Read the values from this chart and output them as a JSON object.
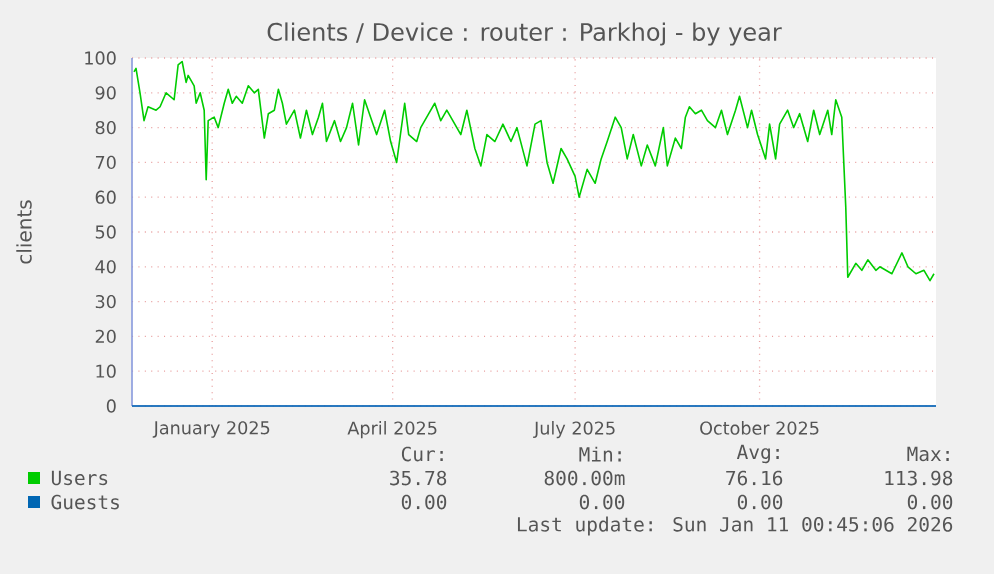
{
  "chart_data": {
    "type": "line",
    "title": "Clients / Device : router : Parkhoj - by year",
    "ylabel": "clients",
    "xlim": [
      "2024-12-06",
      "2026-01-11"
    ],
    "xticks": [
      {
        "value": "2025-01-15",
        "label": "January 2025"
      },
      {
        "value": "2025-04-15",
        "label": "April 2025"
      },
      {
        "value": "2025-07-15",
        "label": "July 2025"
      },
      {
        "value": "2025-10-15",
        "label": "October 2025"
      }
    ],
    "ylim": [
      0,
      100
    ],
    "yticks": [
      0,
      10,
      20,
      30,
      40,
      50,
      60,
      70,
      80,
      90,
      100
    ],
    "grid": true,
    "legend": "bottom",
    "series": [
      {
        "name": "Users",
        "color": "#00cc00",
        "x": [
          "2024-12-07",
          "2024-12-08",
          "2024-12-10",
          "2024-12-12",
          "2024-12-14",
          "2024-12-18",
          "2024-12-20",
          "2024-12-23",
          "2024-12-27",
          "2024-12-29",
          "2024-12-31",
          "2025-01-02",
          "2025-01-03",
          "2025-01-06",
          "2025-01-07",
          "2025-01-09",
          "2025-01-11",
          "2025-01-12",
          "2025-01-13",
          "2025-01-16",
          "2025-01-18",
          "2025-01-21",
          "2025-01-23",
          "2025-01-25",
          "2025-01-27",
          "2025-01-30",
          "2025-02-02",
          "2025-02-05",
          "2025-02-07",
          "2025-02-10",
          "2025-02-12",
          "2025-02-15",
          "2025-02-17",
          "2025-02-19",
          "2025-02-21",
          "2025-02-25",
          "2025-02-28",
          "2025-03-03",
          "2025-03-06",
          "2025-03-09",
          "2025-03-11",
          "2025-03-13",
          "2025-03-17",
          "2025-03-20",
          "2025-03-23",
          "2025-03-26",
          "2025-03-29",
          "2025-04-01",
          "2025-04-04",
          "2025-04-07",
          "2025-04-11",
          "2025-04-14",
          "2025-04-17",
          "2025-04-21",
          "2025-04-23",
          "2025-04-27",
          "2025-04-29",
          "2025-05-03",
          "2025-05-06",
          "2025-05-09",
          "2025-05-12",
          "2025-05-16",
          "2025-05-19",
          "2025-05-22",
          "2025-05-26",
          "2025-05-29",
          "2025-06-01",
          "2025-06-05",
          "2025-06-09",
          "2025-06-13",
          "2025-06-16",
          "2025-06-21",
          "2025-06-25",
          "2025-06-28",
          "2025-07-01",
          "2025-07-04",
          "2025-07-08",
          "2025-07-11",
          "2025-07-15",
          "2025-07-17",
          "2025-07-21",
          "2025-07-25",
          "2025-07-28",
          "2025-07-31",
          "2025-08-04",
          "2025-08-07",
          "2025-08-10",
          "2025-08-13",
          "2025-08-17",
          "2025-08-20",
          "2025-08-24",
          "2025-08-28",
          "2025-08-30",
          "2025-09-03",
          "2025-09-06",
          "2025-09-08",
          "2025-09-10",
          "2025-09-13",
          "2025-09-16",
          "2025-09-19",
          "2025-09-23",
          "2025-09-26",
          "2025-09-29",
          "2025-10-03",
          "2025-10-05",
          "2025-10-09",
          "2025-10-11",
          "2025-10-14",
          "2025-10-18",
          "2025-10-20",
          "2025-10-23",
          "2025-10-25",
          "2025-10-29",
          "2025-11-01",
          "2025-11-04",
          "2025-11-08",
          "2025-11-11",
          "2025-11-14",
          "2025-11-18",
          "2025-11-20",
          "2025-11-22",
          "2025-11-25",
          "2025-11-27",
          "2025-11-28",
          "2025-12-02",
          "2025-12-05",
          "2025-12-08",
          "2025-12-12",
          "2025-12-14",
          "2025-12-20",
          "2025-12-25",
          "2025-12-28",
          "2026-01-01",
          "2026-01-05",
          "2026-01-08",
          "2026-01-10"
        ],
        "values": [
          96,
          97,
          90,
          82,
          86,
          85,
          86,
          90,
          88,
          98,
          99,
          93,
          95,
          92,
          87,
          90,
          85,
          65,
          82,
          83,
          80,
          87,
          91,
          87,
          89,
          87,
          92,
          90,
          91,
          77,
          84,
          85,
          91,
          87,
          81,
          85,
          77,
          85,
          78,
          83,
          87,
          76,
          82,
          76,
          80,
          87,
          75,
          88,
          83,
          78,
          85,
          76,
          70,
          87,
          78,
          76,
          80,
          84,
          87,
          82,
          85,
          81,
          78,
          85,
          74,
          69,
          78,
          76,
          81,
          76,
          80,
          69,
          81,
          82,
          70,
          64,
          74,
          71,
          66,
          60,
          68,
          64,
          71,
          76,
          83,
          80,
          71,
          78,
          69,
          75,
          69,
          80,
          69,
          77,
          74,
          83,
          86,
          84,
          85,
          82,
          80,
          85,
          78,
          85,
          89,
          80,
          85,
          78,
          71,
          81,
          71,
          81,
          85,
          80,
          84,
          76,
          85,
          78,
          85,
          78,
          88,
          83,
          57,
          37,
          41,
          39,
          42,
          39,
          40,
          38,
          44,
          40,
          38,
          39,
          36,
          38
        ]
      },
      {
        "name": "Guests",
        "color": "#0066b3",
        "x": [
          "2024-12-06",
          "2026-01-11"
        ],
        "values": [
          0,
          0
        ]
      }
    ],
    "annotations": [
      "Cur:",
      "Min:",
      "Avg:",
      "Max:",
      "35.78",
      "800.00m",
      "76.16",
      "113.98",
      "0.00",
      "0.00",
      "0.00",
      "0.00",
      "Last update: Sun Jan 11 00:45:06 2026"
    ]
  }
}
